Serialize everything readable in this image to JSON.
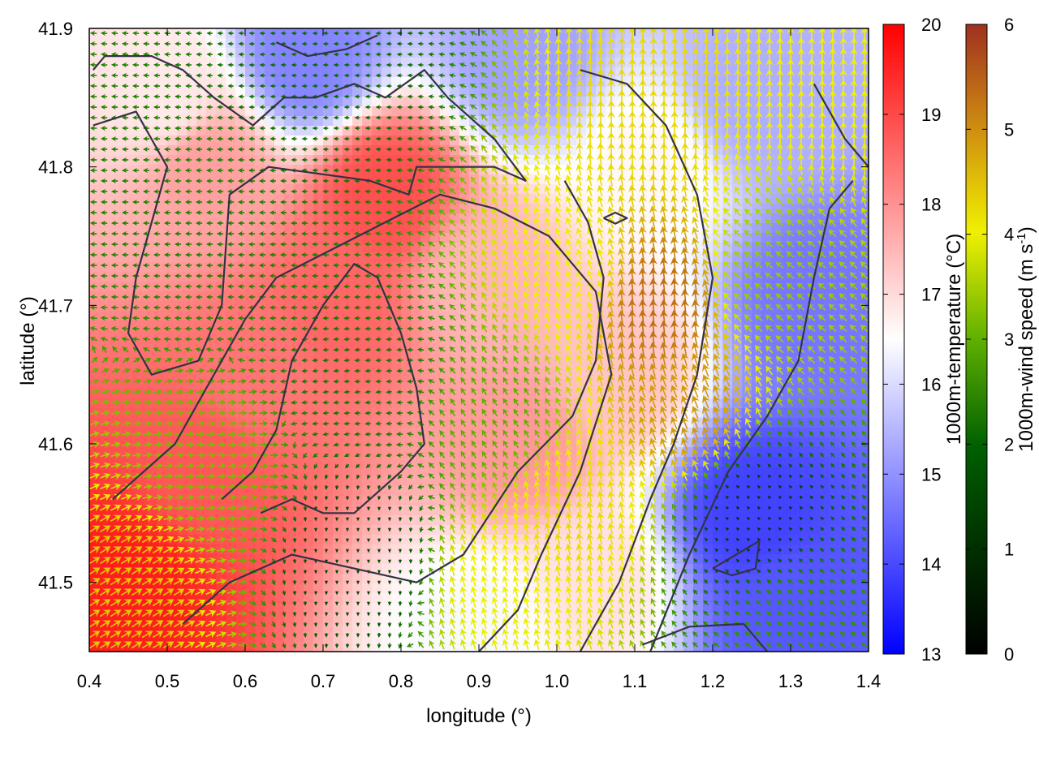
{
  "chart_data": {
    "type": "heatmap",
    "xlabel": "longitude (°)",
    "ylabel": "latitude (°)",
    "xlim": [
      0.4,
      1.4
    ],
    "ylim": [
      41.45,
      41.9
    ],
    "x_ticks": [
      "0.4",
      "0.5",
      "0.6",
      "0.7",
      "0.8",
      "0.9",
      "1.0",
      "1.1",
      "1.2",
      "1.3",
      "1.4"
    ],
    "y_ticks": [
      "41.5",
      "41.6",
      "41.7",
      "41.8",
      "41.9"
    ],
    "temperature_colorbar": {
      "label": "1000m-temperature (°C)",
      "range": [
        13,
        20
      ],
      "ticks": [
        "13",
        "14",
        "15",
        "16",
        "17",
        "18",
        "19",
        "20"
      ],
      "colors": [
        "#0000ff",
        "#ffffff",
        "#ff0000"
      ]
    },
    "wind_colorbar": {
      "label_main": "1000m-wind speed (m s",
      "label_sup": "-1",
      "label_end": ")",
      "range": [
        0,
        6
      ],
      "ticks": [
        "0",
        "1",
        "2",
        "3",
        "4",
        "5",
        "6"
      ],
      "colors": [
        "#000000",
        "#006000",
        "#40a000",
        "#f0f000",
        "#c07010",
        "#a03020"
      ]
    },
    "temperature_regions": [
      {
        "lon": 0.45,
        "lat": 41.5,
        "value": 19.6
      },
      {
        "lon": 0.55,
        "lat": 41.58,
        "value": 18.8
      },
      {
        "lon": 0.62,
        "lat": 41.65,
        "value": 18.4
      },
      {
        "lon": 0.72,
        "lat": 41.7,
        "value": 18.6
      },
      {
        "lon": 0.78,
        "lat": 41.78,
        "value": 18.9
      },
      {
        "lon": 0.55,
        "lat": 41.8,
        "value": 17.8
      },
      {
        "lon": 0.5,
        "lat": 41.85,
        "value": 16.8
      },
      {
        "lon": 0.68,
        "lat": 41.88,
        "value": 14.8
      },
      {
        "lon": 0.95,
        "lat": 41.88,
        "value": 15.2
      },
      {
        "lon": 0.9,
        "lat": 41.72,
        "value": 17.5
      },
      {
        "lon": 0.95,
        "lat": 41.6,
        "value": 17.9
      },
      {
        "lon": 1.08,
        "lat": 41.65,
        "value": 17.3
      },
      {
        "lon": 1.12,
        "lat": 41.8,
        "value": 16.6
      },
      {
        "lon": 1.25,
        "lat": 41.85,
        "value": 15.4
      },
      {
        "lon": 1.33,
        "lat": 41.7,
        "value": 14.6
      },
      {
        "lon": 1.25,
        "lat": 41.55,
        "value": 13.9
      },
      {
        "lon": 1.3,
        "lat": 41.48,
        "value": 14.2
      },
      {
        "lon": 0.9,
        "lat": 41.47,
        "value": 16.4
      },
      {
        "lon": 1.05,
        "lat": 41.5,
        "value": 16.9
      }
    ],
    "wind_regions": [
      {
        "lon": 0.45,
        "lat": 41.5,
        "speed": 4.0,
        "u": 0.8,
        "v": 0.5
      },
      {
        "lon": 0.55,
        "lat": 41.58,
        "speed": 2.8,
        "u": 1.0,
        "v": 0.1
      },
      {
        "lon": 0.55,
        "lat": 41.75,
        "speed": 1.8,
        "u": -1.0,
        "v": 0.0
      },
      {
        "lon": 0.75,
        "lat": 41.65,
        "speed": 1.6,
        "u": -1.0,
        "v": -0.1
      },
      {
        "lon": 0.75,
        "lat": 41.52,
        "speed": 0.8,
        "u": 0.0,
        "v": -1.0
      },
      {
        "lon": 0.72,
        "lat": 41.86,
        "speed": 1.4,
        "u": -1.0,
        "v": 0.0
      },
      {
        "lon": 0.92,
        "lat": 41.62,
        "speed": 2.6,
        "u": -0.5,
        "v": 0.8
      },
      {
        "lon": 0.92,
        "lat": 41.5,
        "speed": 3.6,
        "u": -0.3,
        "v": 1.0
      },
      {
        "lon": 1.02,
        "lat": 41.72,
        "speed": 3.6,
        "u": -0.4,
        "v": 1.0
      },
      {
        "lon": 1.02,
        "lat": 41.55,
        "speed": 3.8,
        "u": -0.2,
        "v": 1.0
      },
      {
        "lon": 1.12,
        "lat": 41.85,
        "speed": 3.8,
        "u": 0.0,
        "v": 1.0
      },
      {
        "lon": 1.13,
        "lat": 41.7,
        "speed": 4.8,
        "u": -0.1,
        "v": 1.0
      },
      {
        "lon": 1.17,
        "lat": 41.62,
        "speed": 4.4,
        "u": -0.4,
        "v": 1.0
      },
      {
        "lon": 1.28,
        "lat": 41.72,
        "speed": 3.0,
        "u": -0.8,
        "v": 0.6
      },
      {
        "lon": 1.25,
        "lat": 41.55,
        "speed": 0.7,
        "u": -0.5,
        "v": 0.5
      },
      {
        "lon": 1.35,
        "lat": 41.85,
        "speed": 3.6,
        "u": 0.0,
        "v": 1.0
      },
      {
        "lon": 1.3,
        "lat": 41.46,
        "speed": 2.2,
        "u": -0.7,
        "v": 0.5
      }
    ],
    "contours": [
      [
        [
          0.405,
          41.83
        ],
        [
          0.46,
          41.84
        ],
        [
          0.5,
          41.8
        ],
        [
          0.46,
          41.72
        ],
        [
          0.45,
          41.68
        ],
        [
          0.48,
          41.65
        ],
        [
          0.54,
          41.66
        ],
        [
          0.57,
          41.7
        ],
        [
          0.58,
          41.78
        ],
        [
          0.63,
          41.8
        ],
        [
          0.76,
          41.79
        ],
        [
          0.81,
          41.78
        ],
        [
          0.82,
          41.8
        ],
        [
          0.85,
          41.8
        ],
        [
          0.92,
          41.8
        ],
        [
          0.96,
          41.79
        ],
        [
          0.92,
          41.82
        ],
        [
          0.86,
          41.85
        ],
        [
          0.83,
          41.87
        ],
        [
          0.78,
          41.85
        ],
        [
          0.74,
          41.86
        ],
        [
          0.69,
          41.85
        ],
        [
          0.65,
          41.85
        ],
        [
          0.61,
          41.83
        ],
        [
          0.56,
          41.85
        ],
        [
          0.52,
          41.87
        ],
        [
          0.48,
          41.88
        ],
        [
          0.42,
          41.88
        ],
        [
          0.405,
          41.87
        ]
      ],
      [
        [
          0.57,
          41.56
        ],
        [
          0.61,
          41.58
        ],
        [
          0.64,
          41.61
        ],
        [
          0.66,
          41.66
        ],
        [
          0.7,
          41.7
        ],
        [
          0.74,
          41.73
        ],
        [
          0.77,
          41.72
        ],
        [
          0.8,
          41.68
        ],
        [
          0.82,
          41.64
        ],
        [
          0.83,
          41.6
        ],
        [
          0.8,
          41.58
        ],
        [
          0.74,
          41.55
        ],
        [
          0.7,
          41.55
        ],
        [
          0.66,
          41.56
        ],
        [
          0.62,
          41.55
        ]
      ],
      [
        [
          0.52,
          41.47
        ],
        [
          0.58,
          41.5
        ],
        [
          0.66,
          41.52
        ],
        [
          0.74,
          41.51
        ],
        [
          0.82,
          41.5
        ],
        [
          0.88,
          41.52
        ],
        [
          0.95,
          41.58
        ],
        [
          1.02,
          41.62
        ],
        [
          1.05,
          41.66
        ],
        [
          1.06,
          41.72
        ],
        [
          1.04,
          41.76
        ],
        [
          1.01,
          41.79
        ]
      ],
      [
        [
          0.43,
          41.56
        ],
        [
          0.47,
          41.58
        ],
        [
          0.51,
          41.6
        ],
        [
          0.55,
          41.64
        ],
        [
          0.6,
          41.69
        ],
        [
          0.64,
          41.72
        ],
        [
          0.71,
          41.74
        ],
        [
          0.78,
          41.76
        ],
        [
          0.85,
          41.78
        ],
        [
          0.92,
          41.77
        ],
        [
          0.99,
          41.75
        ],
        [
          1.05,
          41.71
        ],
        [
          1.07,
          41.65
        ],
        [
          1.03,
          41.58
        ],
        [
          0.98,
          41.52
        ],
        [
          0.95,
          41.48
        ],
        [
          0.9,
          41.45
        ]
      ],
      [
        [
          1.03,
          41.45
        ],
        [
          1.08,
          41.5
        ],
        [
          1.12,
          41.56
        ],
        [
          1.15,
          41.6
        ],
        [
          1.18,
          41.65
        ],
        [
          1.2,
          41.72
        ],
        [
          1.18,
          41.78
        ],
        [
          1.14,
          41.83
        ],
        [
          1.09,
          41.86
        ],
        [
          1.03,
          41.87
        ]
      ],
      [
        [
          1.12,
          41.45
        ],
        [
          1.17,
          41.52
        ],
        [
          1.22,
          41.58
        ],
        [
          1.27,
          41.62
        ],
        [
          1.31,
          41.66
        ],
        [
          1.33,
          41.72
        ],
        [
          1.35,
          41.77
        ],
        [
          1.38,
          41.79
        ]
      ],
      [
        [
          1.11,
          41.455
        ],
        [
          1.17,
          41.468
        ],
        [
          1.24,
          41.47
        ],
        [
          1.27,
          41.45
        ]
      ],
      [
        [
          1.2,
          41.51
        ],
        [
          1.23,
          41.52
        ],
        [
          1.26,
          41.53
        ],
        [
          1.255,
          41.51
        ],
        [
          1.225,
          41.505
        ],
        [
          1.2,
          41.51
        ]
      ],
      [
        [
          1.06,
          41.763
        ],
        [
          1.075,
          41.767
        ],
        [
          1.09,
          41.763
        ],
        [
          1.075,
          41.759
        ],
        [
          1.06,
          41.763
        ]
      ],
      [
        [
          1.33,
          41.86
        ],
        [
          1.35,
          41.84
        ],
        [
          1.37,
          41.82
        ],
        [
          1.4,
          41.8
        ]
      ],
      [
        [
          0.64,
          41.89
        ],
        [
          0.68,
          41.88
        ],
        [
          0.73,
          41.885
        ],
        [
          0.77,
          41.895
        ]
      ]
    ]
  }
}
